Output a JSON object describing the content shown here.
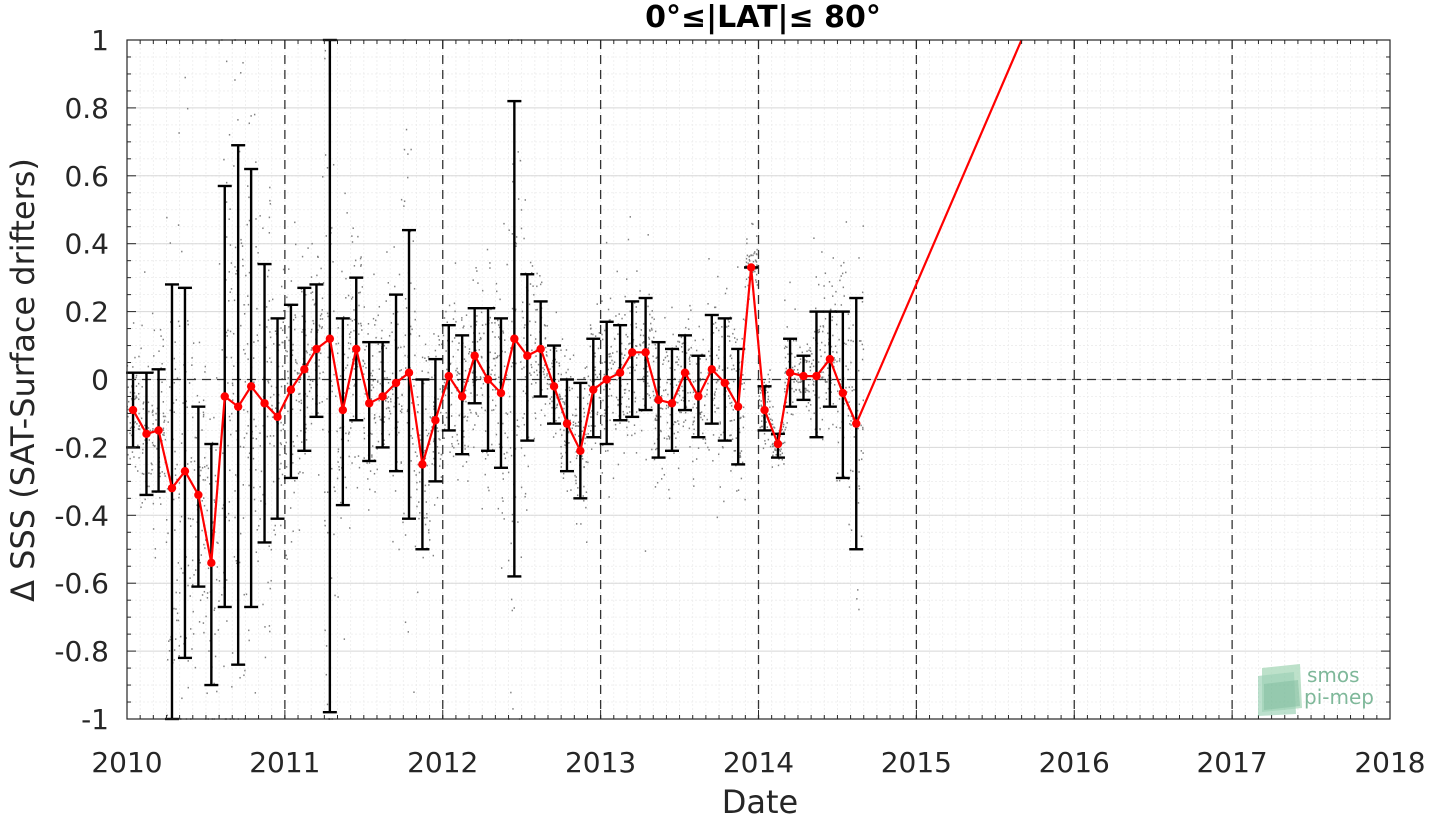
{
  "chart_data": {
    "type": "line",
    "title": "0°≤|LAT|≤ 80°",
    "xlabel": "Date",
    "ylabel": "Δ SSS (SAT-Surface drifters)",
    "xlim": [
      "2010-01-01",
      "2018-01-01"
    ],
    "ylim": [
      -1,
      1
    ],
    "x_ticks": [
      "2010",
      "2011",
      "2012",
      "2013",
      "2014",
      "2015",
      "2016",
      "2017",
      "2018"
    ],
    "y_ticks": [
      "-1",
      "-0.8",
      "-0.6",
      "-0.4",
      "-0.2",
      "0",
      "0.2",
      "0.4",
      "0.6",
      "0.8",
      "1"
    ],
    "grid": true,
    "year_dashed_lines": [
      "2011",
      "2012",
      "2013",
      "2014",
      "2015",
      "2016",
      "2017"
    ],
    "zero_line": 0,
    "colors": {
      "mean_line": "#ff0000",
      "error_bars": "#000000",
      "scatter": "#808080",
      "grid": "#e0e0e0"
    },
    "series": [
      {
        "type": "mean_with_error_bars",
        "x": [
          "2010-01-15",
          "2010-02-15",
          "2010-03-15",
          "2010-04-15",
          "2010-05-15",
          "2010-06-15",
          "2010-07-15",
          "2010-08-15",
          "2010-09-15",
          "2010-10-15",
          "2010-11-15",
          "2010-12-15",
          "2011-01-15",
          "2011-02-15",
          "2011-03-15",
          "2011-04-15",
          "2011-05-15",
          "2011-06-15",
          "2011-07-15",
          "2011-08-15",
          "2011-09-15",
          "2011-10-15",
          "2011-11-15",
          "2011-12-15",
          "2012-01-15",
          "2012-02-15",
          "2012-03-15",
          "2012-04-15",
          "2012-05-15",
          "2012-06-15",
          "2012-07-15",
          "2012-08-15",
          "2012-09-15",
          "2012-10-15",
          "2012-11-15",
          "2012-12-15",
          "2013-01-15",
          "2013-02-15",
          "2013-03-15",
          "2013-04-15",
          "2013-05-15",
          "2013-06-15",
          "2013-07-15",
          "2013-08-15",
          "2013-09-15",
          "2013-10-15",
          "2013-11-15",
          "2013-12-15",
          "2014-01-15",
          "2014-02-15",
          "2014-03-15",
          "2014-04-15",
          "2014-05-15",
          "2014-06-15",
          "2014-07-15",
          "2014-08-15",
          "2015-09-01"
        ],
        "y": [
          -0.09,
          -0.16,
          -0.15,
          -0.32,
          -0.27,
          -0.34,
          -0.54,
          -0.05,
          -0.08,
          -0.02,
          -0.07,
          -0.11,
          -0.03,
          0.03,
          0.09,
          0.12,
          -0.09,
          0.09,
          -0.07,
          -0.05,
          -0.01,
          0.02,
          -0.25,
          -0.12,
          0.01,
          -0.05,
          0.07,
          0.0,
          -0.04,
          0.12,
          0.07,
          0.09,
          -0.02,
          -0.13,
          -0.21,
          -0.03,
          0.0,
          0.02,
          0.08,
          0.08,
          -0.06,
          -0.07,
          0.02,
          -0.05,
          0.03,
          -0.01,
          -0.08,
          0.33,
          -0.09,
          -0.19,
          0.02,
          0.01,
          0.01,
          0.06,
          -0.04,
          -0.13,
          1.0
        ],
        "err_low": [
          -0.2,
          -0.34,
          -0.33,
          -1.0,
          -0.82,
          -0.61,
          -0.9,
          -0.67,
          -0.84,
          -0.67,
          -0.48,
          -0.41,
          -0.29,
          -0.21,
          -0.11,
          -0.98,
          -0.37,
          -0.12,
          -0.24,
          -0.2,
          -0.27,
          -0.41,
          -0.5,
          -0.3,
          -0.15,
          -0.22,
          -0.07,
          -0.21,
          -0.26,
          -0.58,
          -0.18,
          -0.05,
          -0.13,
          -0.27,
          -0.35,
          -0.17,
          -0.19,
          -0.12,
          -0.11,
          -0.09,
          -0.23,
          -0.21,
          -0.09,
          -0.17,
          -0.13,
          -0.18,
          -0.25,
          0.33,
          -0.15,
          -0.23,
          -0.08,
          -0.06,
          -0.17,
          -0.08,
          -0.29,
          -0.5,
          null
        ],
        "err_high": [
          0.02,
          0.02,
          0.03,
          0.28,
          0.27,
          -0.08,
          -0.19,
          0.57,
          0.69,
          0.62,
          0.34,
          0.18,
          0.22,
          0.27,
          0.28,
          1.0,
          0.18,
          0.3,
          0.11,
          0.11,
          0.25,
          0.44,
          0.0,
          0.06,
          0.16,
          0.13,
          0.21,
          0.21,
          0.18,
          0.82,
          0.31,
          0.23,
          0.1,
          0.0,
          -0.01,
          0.12,
          0.17,
          0.16,
          0.23,
          0.24,
          0.11,
          0.09,
          0.13,
          0.07,
          0.19,
          0.18,
          0.09,
          0.33,
          -0.02,
          -0.16,
          0.12,
          0.07,
          0.2,
          0.2,
          0.2,
          0.24,
          null
        ]
      }
    ]
  },
  "logo": {
    "line1": "smos",
    "line2": "pi-mep"
  }
}
